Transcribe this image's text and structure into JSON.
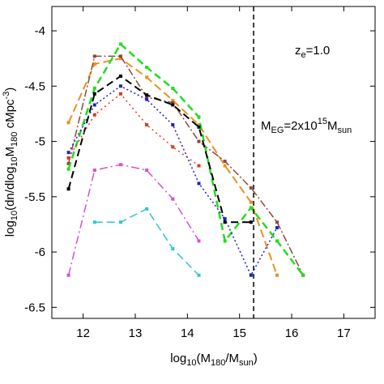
{
  "chart_data": {
    "type": "line",
    "xlabel": {
      "pre": "log",
      "sub1": "10",
      "mid": "(M",
      "sub2": "180",
      "mid2": "/M",
      "sub3": "sun",
      "post": ")"
    },
    "ylabel": {
      "pre": "log",
      "sub1": "10",
      "mid": "(dn/dlog",
      "sub2": "10",
      "mid2": "M",
      "sub3": "180",
      "mid3": " cMpc",
      "sup": "-3",
      "post": ")"
    },
    "xlim": [
      11.4,
      17.6
    ],
    "ylim": [
      -6.6,
      -3.78
    ],
    "xticks": [
      12,
      13,
      14,
      15,
      16,
      17
    ],
    "yticks": [
      -6.5,
      -6,
      -5.5,
      -5,
      -4.5,
      -4
    ],
    "xtick_labels": [
      "12",
      "13",
      "14",
      "15",
      "16",
      "17"
    ],
    "ytick_labels": [
      "-6.5",
      "-6",
      "-5.5",
      "-5",
      "-4.5",
      "-4"
    ],
    "grid": false,
    "vline": {
      "x": 15.27,
      "style": "dashed",
      "color": "#000000"
    },
    "annotations": {
      "redshift": {
        "pre": "z",
        "sub": "e",
        "post": "=1.0"
      },
      "threshold": {
        "pre": "M",
        "sub1": "EG",
        "mid": "=2x10",
        "sup": "15",
        "mid2": "M",
        "sub2": "sun"
      }
    },
    "series": [
      {
        "color": "#e8921e",
        "dash": "10,5",
        "width": 2,
        "x": [
          11.72,
          12.22,
          12.72,
          13.22,
          13.72,
          14.22,
          14.72,
          15.22,
          15.72
        ],
        "y": [
          -4.83,
          -4.3,
          -4.25,
          -4.42,
          -4.63,
          -4.85,
          -5.22,
          -5.55,
          -6.21
        ]
      },
      {
        "color": "#8b4a3a",
        "dash": "9,3,2,3",
        "width": 1.5,
        "x": [
          11.72,
          12.22,
          12.72,
          13.22,
          13.72,
          14.22,
          14.72,
          15.22,
          15.72,
          16.22
        ],
        "y": [
          -5.2,
          -4.23,
          -4.23,
          -4.6,
          -4.65,
          -5.0,
          -5.18,
          -5.42,
          -5.73,
          -6.21
        ]
      },
      {
        "color": "#22dd22",
        "dash": "9,5",
        "width": 2.5,
        "x": [
          11.72,
          12.22,
          12.72,
          13.22,
          13.72,
          14.22,
          14.72,
          15.22,
          15.72,
          16.22
        ],
        "y": [
          -5.25,
          -4.52,
          -4.12,
          -4.33,
          -4.52,
          -4.78,
          -5.9,
          -5.6,
          -5.9,
          -6.21
        ]
      },
      {
        "color": "#000000",
        "dash": "9,5",
        "width": 2,
        "x": [
          11.72,
          12.22,
          12.72,
          13.22,
          13.72,
          14.22,
          14.72,
          15.22
        ],
        "y": [
          -5.43,
          -4.57,
          -4.41,
          -4.58,
          -4.67,
          -4.87,
          -5.73,
          -5.73
        ]
      },
      {
        "color": "#d83a1c",
        "dash": "2,4",
        "width": 1.5,
        "x": [
          11.72,
          12.22,
          12.72,
          13.22,
          13.72,
          14.22
        ],
        "y": [
          -5.15,
          -4.76,
          -4.57,
          -4.85,
          -5.05,
          -5.22
        ]
      },
      {
        "color": "#2222bb",
        "dash": "2,3",
        "width": 1.5,
        "x": [
          11.72,
          12.22,
          12.72,
          13.22,
          13.72,
          14.22,
          14.72,
          15.22,
          15.72
        ],
        "y": [
          -5.1,
          -4.67,
          -4.5,
          -4.62,
          -4.85,
          -5.38,
          -5.7,
          -6.21,
          -5.78
        ]
      },
      {
        "color": "#d54fd5",
        "dash": "10,4,2,4",
        "width": 1.5,
        "x": [
          11.72,
          12.22,
          12.72,
          13.22,
          13.72,
          14.22
        ],
        "y": [
          -6.21,
          -5.26,
          -5.21,
          -5.26,
          -5.52,
          -5.9
        ]
      },
      {
        "color": "#2ec9c9",
        "dash": "10,5",
        "width": 1.5,
        "x": [
          12.22,
          12.72,
          13.22,
          13.72,
          14.22
        ],
        "y": [
          -5.73,
          -5.73,
          -5.61,
          -5.97,
          -6.21
        ]
      }
    ]
  }
}
